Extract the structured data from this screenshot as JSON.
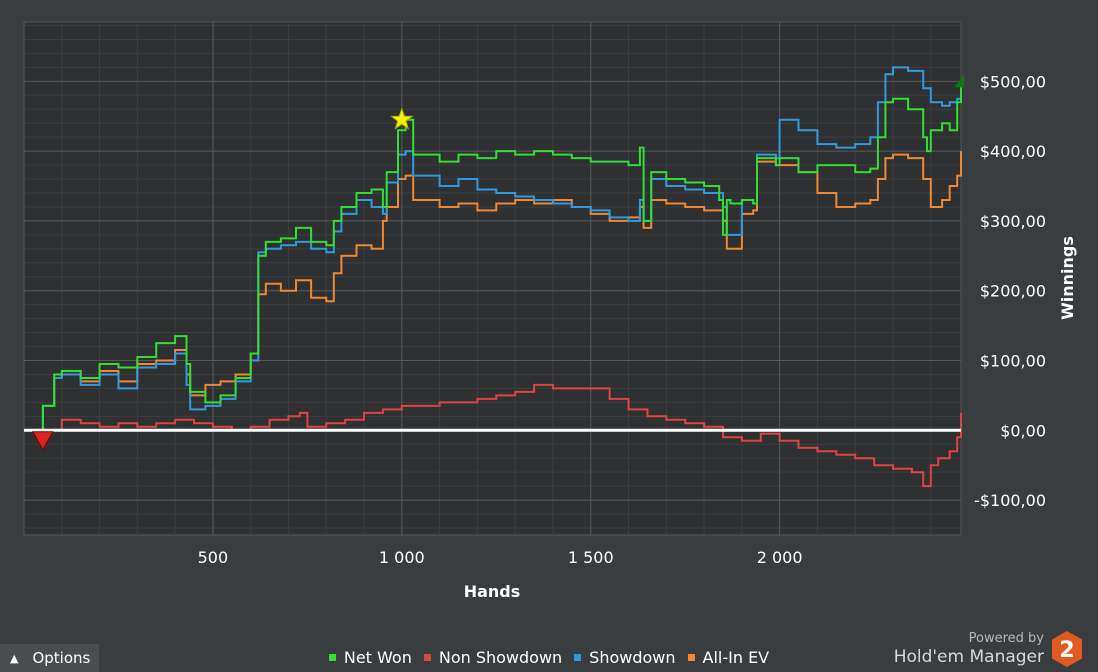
{
  "chart_data": {
    "type": "line",
    "title": "",
    "xlabel": "Hands",
    "ylabel": "Winnings",
    "xlim": [
      0,
      2480
    ],
    "ylim": [
      -150,
      585
    ],
    "x_ticks": [
      500,
      1000,
      1500,
      2000
    ],
    "x_tick_labels": [
      "500",
      "1 000",
      "1 500",
      "2 000"
    ],
    "y_ticks": [
      -100,
      0,
      100,
      200,
      300,
      400,
      500
    ],
    "y_tick_labels": [
      "-$100,00",
      "$0,00",
      "$100,00",
      "$200,00",
      "$300,00",
      "$400,00",
      "$500,00"
    ],
    "grid": true,
    "legend_position": "bottom",
    "series": [
      {
        "name": "Net Won",
        "color": "#33dd33",
        "x": [
          0,
          40,
          50,
          80,
          100,
          150,
          200,
          250,
          300,
          350,
          400,
          430,
          440,
          480,
          520,
          560,
          600,
          620,
          640,
          680,
          720,
          760,
          800,
          820,
          840,
          880,
          920,
          950,
          960,
          990,
          1010,
          1030,
          1100,
          1150,
          1200,
          1250,
          1300,
          1350,
          1400,
          1450,
          1500,
          1550,
          1600,
          1630,
          1640,
          1660,
          1700,
          1750,
          1800,
          1840,
          1850,
          1860,
          1870,
          1900,
          1930,
          1940,
          1990,
          2000,
          2050,
          2100,
          2150,
          2200,
          2240,
          2260,
          2280,
          2300,
          2340,
          2380,
          2390,
          2400,
          2430,
          2450,
          2470,
          2480
        ],
        "y": [
          0,
          -5,
          35,
          80,
          85,
          75,
          95,
          90,
          105,
          125,
          135,
          95,
          55,
          40,
          50,
          75,
          110,
          250,
          270,
          275,
          290,
          270,
          265,
          300,
          320,
          340,
          345,
          320,
          370,
          430,
          445,
          395,
          385,
          395,
          390,
          400,
          395,
          400,
          395,
          390,
          385,
          385,
          380,
          405,
          300,
          370,
          360,
          355,
          350,
          330,
          280,
          330,
          325,
          330,
          325,
          390,
          380,
          390,
          370,
          380,
          380,
          370,
          375,
          420,
          470,
          475,
          460,
          420,
          400,
          430,
          440,
          430,
          470,
          500
        ]
      },
      {
        "name": "Non Showdown",
        "color": "#dd4444",
        "x": [
          0,
          40,
          60,
          100,
          150,
          200,
          250,
          300,
          350,
          400,
          450,
          500,
          550,
          600,
          650,
          700,
          730,
          750,
          800,
          850,
          900,
          950,
          1000,
          1050,
          1100,
          1150,
          1200,
          1250,
          1300,
          1350,
          1400,
          1450,
          1500,
          1550,
          1600,
          1650,
          1700,
          1750,
          1800,
          1850,
          1900,
          1950,
          2000,
          2050,
          2100,
          2150,
          2200,
          2250,
          2300,
          2350,
          2380,
          2400,
          2420,
          2450,
          2470,
          2480
        ],
        "y": [
          0,
          -10,
          0,
          15,
          10,
          5,
          10,
          5,
          10,
          15,
          10,
          5,
          0,
          5,
          15,
          20,
          25,
          5,
          10,
          15,
          25,
          30,
          35,
          35,
          40,
          40,
          45,
          50,
          55,
          65,
          60,
          60,
          60,
          45,
          30,
          20,
          15,
          10,
          5,
          -10,
          -15,
          -5,
          -15,
          -25,
          -30,
          -35,
          -40,
          -50,
          -55,
          -60,
          -80,
          -50,
          -40,
          -30,
          -10,
          25
        ]
      },
      {
        "name": "Showdown",
        "color": "#3399dd",
        "x": [
          0,
          40,
          50,
          80,
          100,
          150,
          200,
          250,
          300,
          350,
          400,
          430,
          440,
          480,
          520,
          560,
          600,
          620,
          640,
          680,
          720,
          760,
          800,
          820,
          840,
          880,
          920,
          950,
          960,
          990,
          1010,
          1030,
          1100,
          1150,
          1200,
          1250,
          1300,
          1350,
          1400,
          1450,
          1500,
          1550,
          1600,
          1630,
          1640,
          1660,
          1700,
          1750,
          1800,
          1850,
          1860,
          1900,
          1930,
          1940,
          1990,
          2000,
          2050,
          2100,
          2150,
          2200,
          2240,
          2260,
          2280,
          2300,
          2340,
          2380,
          2400,
          2430,
          2450,
          2470,
          2480
        ],
        "y": [
          0,
          -5,
          35,
          75,
          80,
          65,
          80,
          60,
          90,
          95,
          110,
          65,
          30,
          35,
          45,
          70,
          100,
          255,
          260,
          265,
          270,
          260,
          255,
          285,
          310,
          330,
          320,
          310,
          355,
          395,
          400,
          365,
          350,
          360,
          345,
          340,
          335,
          330,
          325,
          320,
          315,
          305,
          300,
          330,
          300,
          360,
          350,
          345,
          340,
          320,
          280,
          330,
          325,
          395,
          390,
          445,
          430,
          410,
          405,
          410,
          420,
          470,
          510,
          520,
          515,
          490,
          470,
          465,
          470,
          475,
          490
        ]
      },
      {
        "name": "All-In EV",
        "color": "#ee8833",
        "x": [
          0,
          40,
          50,
          80,
          100,
          150,
          200,
          250,
          300,
          350,
          400,
          430,
          440,
          480,
          520,
          560,
          600,
          620,
          640,
          680,
          720,
          760,
          800,
          820,
          840,
          880,
          920,
          950,
          960,
          990,
          1010,
          1030,
          1100,
          1150,
          1200,
          1250,
          1300,
          1350,
          1400,
          1450,
          1500,
          1550,
          1600,
          1630,
          1640,
          1660,
          1700,
          1750,
          1800,
          1850,
          1860,
          1900,
          1930,
          1940,
          1990,
          2000,
          2050,
          2100,
          2150,
          2200,
          2240,
          2260,
          2280,
          2300,
          2340,
          2380,
          2400,
          2430,
          2450,
          2470,
          2480
        ],
        "y": [
          0,
          -5,
          35,
          75,
          80,
          70,
          85,
          70,
          95,
          100,
          115,
          80,
          50,
          65,
          70,
          80,
          110,
          195,
          210,
          200,
          215,
          190,
          185,
          225,
          250,
          265,
          260,
          300,
          320,
          360,
          365,
          330,
          320,
          325,
          315,
          325,
          330,
          325,
          330,
          320,
          310,
          300,
          305,
          320,
          290,
          330,
          325,
          320,
          315,
          300,
          260,
          310,
          315,
          385,
          380,
          380,
          370,
          340,
          320,
          325,
          330,
          360,
          390,
          395,
          390,
          360,
          320,
          330,
          350,
          365,
          400
        ]
      }
    ],
    "annotations": [
      {
        "type": "star-marker",
        "x": 1000,
        "y": 445,
        "color": "#f5f500"
      },
      {
        "type": "down-triangle-marker",
        "x": 50,
        "y": -15,
        "color": "#dd2222"
      },
      {
        "type": "up-triangle-marker",
        "x": 2478,
        "y": 500,
        "color": "#117711"
      }
    ]
  },
  "ui": {
    "options_label": "Options",
    "brand_powered": "Powered by",
    "brand_name": "Hold'em Manager",
    "brand_logo_number": "2"
  }
}
